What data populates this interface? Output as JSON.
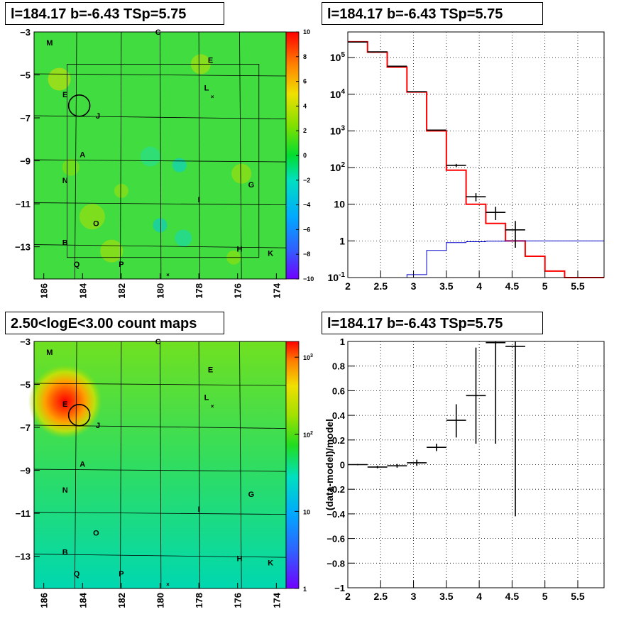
{
  "panels": {
    "top_left_title": "l=184.17 b=-6.43 TSp=5.75",
    "top_right_title": "l=184.17 b=-6.43 TSp=5.75",
    "bottom_left_title": "2.50<logE<3.00 count maps",
    "bottom_right_title": "l=184.17 b=-6.43 TSp=5.75"
  },
  "chart_data": [
    {
      "type": "heatmap",
      "title": "l=184.17 b=-6.43 TSp=5.75",
      "x_ticks": [
        "186",
        "184",
        "182",
        "180",
        "178",
        "176",
        "174"
      ],
      "y_ticks": [
        "-3",
        "-5",
        "-7",
        "-9",
        "-11",
        "-13"
      ],
      "xlim": [
        186.5,
        173.5
      ],
      "ylim": [
        -14.5,
        -3
      ],
      "colorbar_ticks": [
        "10",
        "8",
        "6",
        "4",
        "2",
        "0",
        "−2",
        "−4",
        "−6",
        "−8",
        "−10"
      ],
      "colorbar_range": [
        -10,
        10
      ],
      "source_labels": [
        {
          "label": "M",
          "l": 185.7,
          "b": -3.5
        },
        {
          "label": "C",
          "l": 180.1,
          "b": -3.0
        },
        {
          "label": "E",
          "l": 177.4,
          "b": -4.3
        },
        {
          "label": "L",
          "l": 177.6,
          "b": -5.6
        },
        {
          "label": "E",
          "l": 184.9,
          "b": -5.9
        },
        {
          "label": "J",
          "l": 183.2,
          "b": -6.9
        },
        {
          "label": "A",
          "l": 184.0,
          "b": -8.7
        },
        {
          "label": "N",
          "l": 184.9,
          "b": -9.9
        },
        {
          "label": "G",
          "l": 175.3,
          "b": -10.1
        },
        {
          "label": "I",
          "l": 178.0,
          "b": -10.8
        },
        {
          "label": "O",
          "l": 183.3,
          "b": -11.9
        },
        {
          "label": "B",
          "l": 184.9,
          "b": -12.8
        },
        {
          "label": "H",
          "l": 175.9,
          "b": -13.1
        },
        {
          "label": "K",
          "l": 174.3,
          "b": -13.3
        },
        {
          "label": "Q",
          "l": 184.3,
          "b": -13.8
        },
        {
          "label": "P",
          "l": 182.0,
          "b": -13.8
        }
      ],
      "circle": {
        "l": 184.17,
        "b": -6.43
      }
    },
    {
      "type": "line",
      "title": "l=184.17 b=-6.43 TSp=5.75",
      "x_ticks": [
        "2",
        "2.5",
        "3",
        "3.5",
        "4",
        "4.5",
        "5",
        "5.5"
      ],
      "xlim": [
        2,
        5.9
      ],
      "y_scale": "log",
      "y_ticks": [
        "10^-1",
        "1",
        "10",
        "10^2",
        "10^3",
        "10^4",
        "10^5"
      ],
      "ylim": [
        0.1,
        500000
      ],
      "grid": true,
      "bin_edges": [
        2.0,
        2.3,
        2.6,
        2.9,
        3.2,
        3.5,
        3.8,
        4.1,
        4.4,
        4.7,
        5.0,
        5.3,
        5.6,
        5.9
      ],
      "series": [
        {
          "name": "",
          "color": "#ff0000",
          "type": "step",
          "values": [
            270000,
            140000,
            55000,
            11500,
            1000,
            85,
            10,
            3,
            1,
            0.38,
            0.15,
            0.1,
            0.1
          ]
        },
        {
          "name": "",
          "color": "#0000cc",
          "type": "step",
          "values": [
            0.1,
            0.1,
            0.1,
            0.12,
            0.55,
            0.9,
            0.95,
            0.98,
            1,
            1,
            1,
            1,
            1
          ]
        },
        {
          "name": "",
          "color": "#000000",
          "type": "errorbar",
          "points": [
            {
              "x": 2.15,
              "y": 265000,
              "lo": 264000,
              "hi": 266000
            },
            {
              "x": 2.45,
              "y": 143000,
              "lo": 142000,
              "hi": 144000
            },
            {
              "x": 2.75,
              "y": 58000,
              "lo": 57700,
              "hi": 58300
            },
            {
              "x": 3.05,
              "y": 11700,
              "lo": 11600,
              "hi": 11800
            },
            {
              "x": 3.35,
              "y": 1050,
              "lo": 1020,
              "hi": 1080
            },
            {
              "x": 3.65,
              "y": 115,
              "lo": 104,
              "hi": 126
            },
            {
              "x": 3.95,
              "y": 16,
              "lo": 12,
              "hi": 20
            },
            {
              "x": 4.25,
              "y": 6,
              "lo": 3.7,
              "hi": 8.5
            },
            {
              "x": 4.55,
              "y": 2,
              "lo": 0.65,
              "hi": 3.5
            }
          ]
        }
      ]
    },
    {
      "type": "heatmap",
      "title": "2.50<logE<3.00 count maps",
      "x_ticks": [
        "186",
        "184",
        "182",
        "180",
        "178",
        "176",
        "174"
      ],
      "y_ticks": [
        "-3",
        "-5",
        "-7",
        "-9",
        "-11",
        "-13"
      ],
      "xlim": [
        186.5,
        173.5
      ],
      "ylim": [
        -14.5,
        -3
      ],
      "colorbar_scale": "log",
      "colorbar_ticks": [
        "1",
        "10",
        "10^2",
        "10^3"
      ],
      "colorbar_range": [
        1,
        1600
      ],
      "hotspot": {
        "l": 184.9,
        "b": -5.8
      },
      "source_labels": [
        {
          "label": "M",
          "l": 185.7,
          "b": -3.5
        },
        {
          "label": "C",
          "l": 180.1,
          "b": -3.0
        },
        {
          "label": "E",
          "l": 177.4,
          "b": -4.3
        },
        {
          "label": "L",
          "l": 177.6,
          "b": -5.6
        },
        {
          "label": "E",
          "l": 184.9,
          "b": -5.9
        },
        {
          "label": "J",
          "l": 183.2,
          "b": -6.9
        },
        {
          "label": "A",
          "l": 184.0,
          "b": -8.7
        },
        {
          "label": "N",
          "l": 184.9,
          "b": -9.9
        },
        {
          "label": "G",
          "l": 175.3,
          "b": -10.1
        },
        {
          "label": "I",
          "l": 178.0,
          "b": -10.8
        },
        {
          "label": "O",
          "l": 183.3,
          "b": -11.9
        },
        {
          "label": "B",
          "l": 184.9,
          "b": -12.8
        },
        {
          "label": "H",
          "l": 175.9,
          "b": -13.1
        },
        {
          "label": "K",
          "l": 174.3,
          "b": -13.3
        },
        {
          "label": "Q",
          "l": 184.3,
          "b": -13.8
        },
        {
          "label": "P",
          "l": 182.0,
          "b": -13.8
        }
      ],
      "circle": {
        "l": 184.17,
        "b": -6.43
      }
    },
    {
      "type": "scatter",
      "title": "l=184.17 b=-6.43 TSp=5.75",
      "ylabel": "(data-model)/model",
      "x_ticks": [
        "2",
        "2.5",
        "3",
        "3.5",
        "4",
        "4.5",
        "5",
        "5.5"
      ],
      "xlim": [
        2,
        5.9
      ],
      "y_ticks": [
        "−1",
        "−0.8",
        "−0.6",
        "−0.4",
        "−0.2",
        "0",
        "0.2",
        "0.4",
        "0.6",
        "0.8",
        "1"
      ],
      "ylim": [
        -1,
        1
      ],
      "grid": true,
      "points": [
        {
          "x": 2.15,
          "y": 0.0,
          "xerr": 0.15,
          "lo": -0.005,
          "hi": 0.005
        },
        {
          "x": 2.45,
          "y": -0.02,
          "xerr": 0.15,
          "lo": -0.03,
          "hi": -0.01
        },
        {
          "x": 2.75,
          "y": -0.01,
          "xerr": 0.15,
          "lo": -0.025,
          "hi": 0.005
        },
        {
          "x": 3.05,
          "y": 0.015,
          "xerr": 0.15,
          "lo": -0.01,
          "hi": 0.04
        },
        {
          "x": 3.35,
          "y": 0.14,
          "xerr": 0.15,
          "lo": 0.11,
          "hi": 0.17
        },
        {
          "x": 3.65,
          "y": 0.36,
          "xerr": 0.15,
          "lo": 0.22,
          "hi": 0.49
        },
        {
          "x": 3.95,
          "y": 0.56,
          "xerr": 0.15,
          "lo": 0.17,
          "hi": 0.95
        },
        {
          "x": 4.25,
          "y": 0.99,
          "xerr": 0.15,
          "lo": 0.17,
          "hi": 1.0
        },
        {
          "x": 4.55,
          "y": 0.96,
          "xerr": 0.15,
          "lo": -0.42,
          "hi": 1.0
        }
      ]
    }
  ]
}
